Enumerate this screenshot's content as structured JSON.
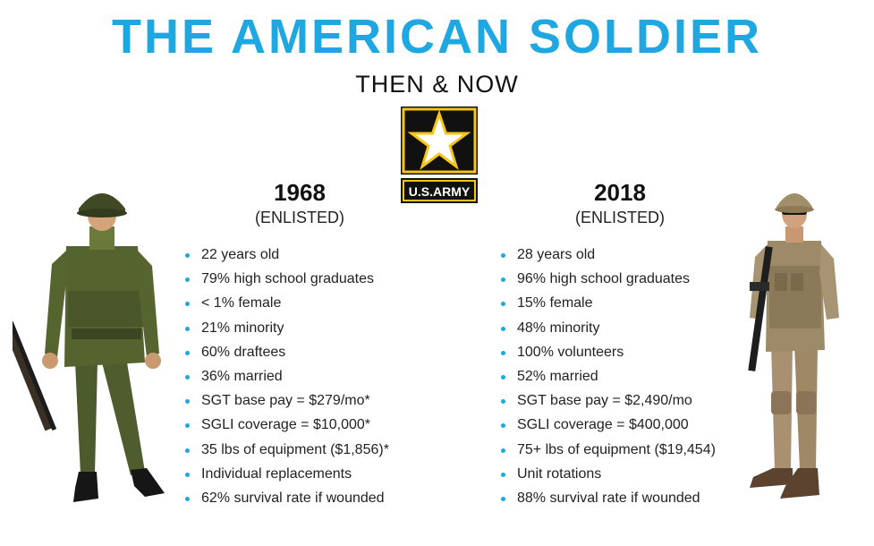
{
  "header": {
    "title": "THE AMERICAN SOLDIER",
    "subtitle": "THEN & NOW"
  },
  "logo": {
    "text": "U.S.ARMY",
    "icon": "army-star-icon"
  },
  "then": {
    "year": "1968",
    "rank": "(ENLISTED)",
    "facts": [
      "22 years old",
      "79% high school graduates",
      "< 1% female",
      "21% minority",
      "60% draftees",
      "36% married",
      "SGT base pay = $279/mo*",
      "SGLI coverage = $10,000*",
      "35 lbs of equipment ($1,856)*",
      "Individual replacements",
      "62% survival rate if wounded"
    ]
  },
  "now": {
    "year": "2018",
    "rank": "(ENLISTED)",
    "facts": [
      "28 years old",
      "96% high school graduates",
      "15% female",
      "48% minority",
      "100% volunteers",
      "52% married",
      "SGT base pay = $2,490/mo",
      "SGLI coverage = $400,000",
      "75+ lbs of equipment ($19,454)",
      "Unit rotations",
      "88% survival rate if wounded"
    ]
  },
  "colors": {
    "accent": "#1ea7e0",
    "army_gold": "#f5c518",
    "army_black": "#111111"
  }
}
